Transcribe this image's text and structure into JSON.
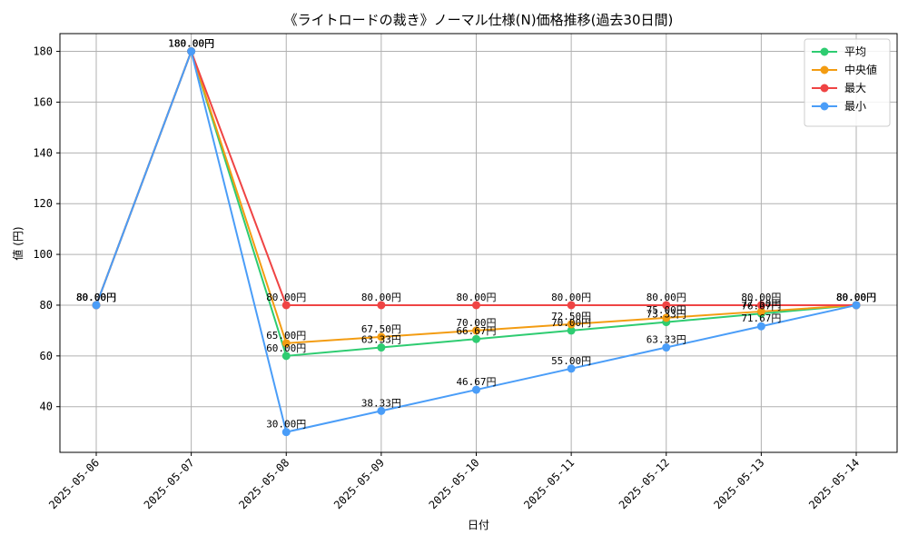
{
  "chart_data": {
    "type": "line",
    "title": "《ライトロードの裁き》ノーマル仕様(N)価格推移(過去30日間)",
    "xlabel": "日付",
    "ylabel": "値 (円)",
    "value_suffix": "円",
    "categories": [
      "2025-05-06",
      "2025-05-07",
      "2025-05-08",
      "2025-05-09",
      "2025-05-10",
      "2025-05-11",
      "2025-05-12",
      "2025-05-13",
      "2025-05-14"
    ],
    "ylim": [
      22,
      187
    ],
    "yticks": [
      40,
      60,
      80,
      100,
      120,
      140,
      160,
      180
    ],
    "grid": true,
    "legend_position": "top-right",
    "series": [
      {
        "name": "平均",
        "color": "#2ecc71",
        "values": [
          80,
          180,
          60,
          63.33,
          66.67,
          70,
          73.33,
          76.67,
          80
        ],
        "labels": [
          "80.00円",
          "180.00円",
          "60.00円",
          "63.33円",
          "66.67円",
          "70.00円",
          "73.33円",
          "76.67円",
          "80.00円"
        ]
      },
      {
        "name": "中央値",
        "color": "#f39c12",
        "values": [
          80,
          180,
          65,
          67.5,
          70,
          72.5,
          75,
          77.5,
          80
        ],
        "labels": [
          "80.00円",
          "180.00円",
          "65.00円",
          "67.50円",
          "70.00円",
          "72.50円",
          "75.00円",
          "77.50円",
          "80.00円"
        ]
      },
      {
        "name": "最大",
        "color": "#ef4444",
        "values": [
          80,
          180,
          80,
          80,
          80,
          80,
          80,
          80,
          80
        ],
        "labels": [
          "80.00円",
          "180.00円",
          "80.00円",
          "80.00円",
          "80.00円",
          "80.00円",
          "80.00円",
          "80.00円",
          "80.00円"
        ]
      },
      {
        "name": "最小",
        "color": "#4a9df8",
        "values": [
          80,
          180,
          30,
          38.33,
          46.67,
          55,
          63.33,
          71.67,
          80
        ],
        "labels": [
          "80.00円",
          "180.00円",
          "30.00円",
          "38.33円",
          "46.67円",
          "55.00円",
          "63.33円",
          "71.67円",
          "80.00円"
        ]
      }
    ]
  }
}
